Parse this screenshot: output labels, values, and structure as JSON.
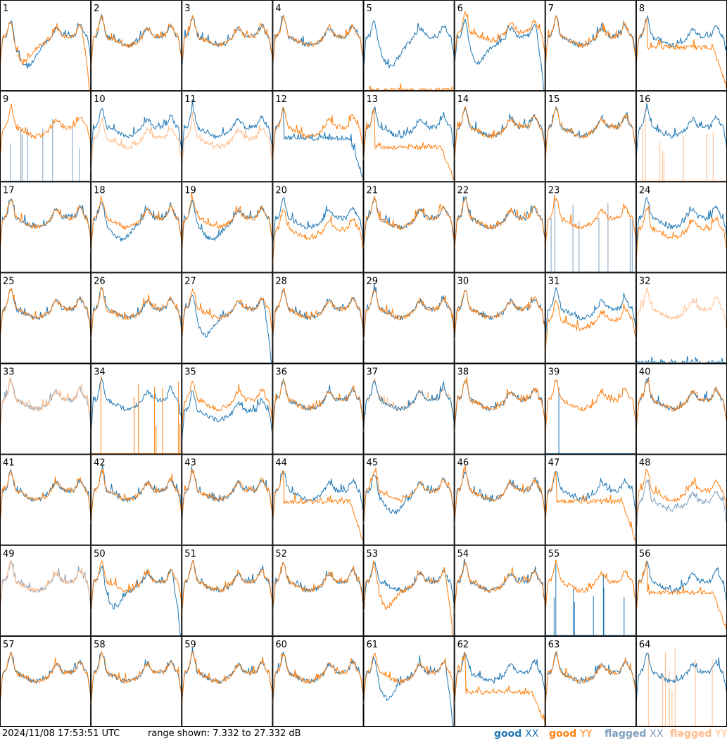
{
  "footer": {
    "timestamp": "2024/11/08 17:53:51 UTC",
    "range_text": "range shown: 7.332 to 27.332 dB"
  },
  "legend": [
    {
      "label_prefix": "good ",
      "label_pol": "XX",
      "color": "#1f77b4"
    },
    {
      "label_prefix": "good ",
      "label_pol": "YY",
      "color": "#ff7f0e"
    },
    {
      "label_prefix": "flagged ",
      "label_pol": "XX",
      "color": "#7f9fbf"
    },
    {
      "label_prefix": "flagged ",
      "label_pol": "YY",
      "color": "#ffbb88"
    }
  ],
  "colors": {
    "good_xx": "#1f77b4",
    "good_yy": "#ff7f0e",
    "flagged_xx": "#7f9fbf",
    "flagged_yy": "#ffbb88"
  },
  "chart_data": {
    "type": "line",
    "unit": "dB",
    "ylim": [
      7.332,
      27.332
    ],
    "grid": false,
    "legend_placement": "bottom-right",
    "panel_layout": "8x8",
    "panels": [
      {
        "id": "1",
        "xx": {
          "status": "good",
          "shape": "dip_mid"
        },
        "yy": {
          "status": "good",
          "shape": "dip_drop"
        }
      },
      {
        "id": "2",
        "xx": {
          "status": "good",
          "shape": "normal"
        },
        "yy": {
          "status": "good",
          "shape": "normal"
        }
      },
      {
        "id": "3",
        "xx": {
          "status": "good",
          "shape": "normal"
        },
        "yy": {
          "status": "good",
          "shape": "normal"
        }
      },
      {
        "id": "4",
        "xx": {
          "status": "good",
          "shape": "normal"
        },
        "yy": {
          "status": "good",
          "shape": "normal"
        }
      },
      {
        "id": "5",
        "xx": {
          "status": "good",
          "shape": "dip_mid"
        },
        "yy": {
          "status": "good",
          "shape": "floor"
        }
      },
      {
        "id": "6",
        "xx": {
          "status": "good",
          "shape": "dip_drop"
        },
        "yy": {
          "status": "good",
          "shape": "high"
        }
      },
      {
        "id": "7",
        "xx": {
          "status": "good",
          "shape": "normal"
        },
        "yy": {
          "status": "good",
          "shape": "normal"
        }
      },
      {
        "id": "8",
        "xx": {
          "status": "good",
          "shape": "normal"
        },
        "yy": {
          "status": "good",
          "shape": "sag_drop"
        }
      },
      {
        "id": "9",
        "xx": {
          "status": "flagged",
          "shape": "spiky_low"
        },
        "yy": {
          "status": "good",
          "shape": "normal"
        }
      },
      {
        "id": "10",
        "xx": {
          "status": "good",
          "shape": "normal"
        },
        "yy": {
          "status": "flagged",
          "shape": "low"
        }
      },
      {
        "id": "11",
        "xx": {
          "status": "good",
          "shape": "normal"
        },
        "yy": {
          "status": "flagged",
          "shape": "low"
        }
      },
      {
        "id": "12",
        "xx": {
          "status": "good",
          "shape": "sag_drop"
        },
        "yy": {
          "status": "good",
          "shape": "normal"
        }
      },
      {
        "id": "13",
        "xx": {
          "status": "good",
          "shape": "normal"
        },
        "yy": {
          "status": "good",
          "shape": "low_drop"
        }
      },
      {
        "id": "14",
        "xx": {
          "status": "good",
          "shape": "normal"
        },
        "yy": {
          "status": "good",
          "shape": "normal"
        }
      },
      {
        "id": "15",
        "xx": {
          "status": "good",
          "shape": "normal"
        },
        "yy": {
          "status": "good",
          "shape": "normal"
        }
      },
      {
        "id": "16",
        "xx": {
          "status": "good",
          "shape": "normal"
        },
        "yy": {
          "status": "flagged",
          "shape": "spiky_low"
        }
      },
      {
        "id": "17",
        "xx": {
          "status": "good",
          "shape": "normal"
        },
        "yy": {
          "status": "good",
          "shape": "normal"
        }
      },
      {
        "id": "18",
        "xx": {
          "status": "good",
          "shape": "dip_shallow"
        },
        "yy": {
          "status": "good",
          "shape": "normal"
        }
      },
      {
        "id": "19",
        "xx": {
          "status": "good",
          "shape": "dip_shallow"
        },
        "yy": {
          "status": "good",
          "shape": "normal"
        }
      },
      {
        "id": "20",
        "xx": {
          "status": "good",
          "shape": "normal"
        },
        "yy": {
          "status": "good",
          "shape": "low"
        }
      },
      {
        "id": "21",
        "xx": {
          "status": "good",
          "shape": "normal"
        },
        "yy": {
          "status": "good",
          "shape": "normal"
        }
      },
      {
        "id": "22",
        "xx": {
          "status": "good",
          "shape": "normal"
        },
        "yy": {
          "status": "good",
          "shape": "normal"
        }
      },
      {
        "id": "23",
        "xx": {
          "status": "flagged",
          "shape": "spiky_low"
        },
        "yy": {
          "status": "good",
          "shape": "normal"
        }
      },
      {
        "id": "24",
        "xx": {
          "status": "good",
          "shape": "normal"
        },
        "yy": {
          "status": "good",
          "shape": "low"
        }
      },
      {
        "id": "25",
        "xx": {
          "status": "good",
          "shape": "normal"
        },
        "yy": {
          "status": "good",
          "shape": "normal"
        }
      },
      {
        "id": "26",
        "xx": {
          "status": "good",
          "shape": "normal"
        },
        "yy": {
          "status": "good",
          "shape": "normal"
        }
      },
      {
        "id": "27",
        "xx": {
          "status": "good",
          "shape": "dip_drop"
        },
        "yy": {
          "status": "good",
          "shape": "normal"
        }
      },
      {
        "id": "28",
        "xx": {
          "status": "good",
          "shape": "normal"
        },
        "yy": {
          "status": "good",
          "shape": "normal"
        }
      },
      {
        "id": "29",
        "xx": {
          "status": "good",
          "shape": "normal"
        },
        "yy": {
          "status": "good",
          "shape": "normal"
        }
      },
      {
        "id": "30",
        "xx": {
          "status": "good",
          "shape": "normal"
        },
        "yy": {
          "status": "good",
          "shape": "normal"
        }
      },
      {
        "id": "31",
        "xx": {
          "status": "good",
          "shape": "normal"
        },
        "yy": {
          "status": "good",
          "shape": "low"
        }
      },
      {
        "id": "32",
        "xx": {
          "status": "good",
          "shape": "floor"
        },
        "yy": {
          "status": "flagged",
          "shape": "normal"
        }
      },
      {
        "id": "33",
        "xx": {
          "status": "flagged",
          "shape": "normal"
        },
        "yy": {
          "status": "flagged",
          "shape": "normal"
        }
      },
      {
        "id": "34",
        "xx": {
          "status": "good",
          "shape": "normal"
        },
        "yy": {
          "status": "good",
          "shape": "spiky_low"
        }
      },
      {
        "id": "35",
        "xx": {
          "status": "good",
          "shape": "low"
        },
        "yy": {
          "status": "good",
          "shape": "normal"
        }
      },
      {
        "id": "36",
        "xx": {
          "status": "good",
          "shape": "normal"
        },
        "yy": {
          "status": "good",
          "shape": "normal"
        }
      },
      {
        "id": "37",
        "xx": {
          "status": "good",
          "shape": "normal"
        },
        "yy": {
          "status": "flagged",
          "shape": "normal"
        }
      },
      {
        "id": "38",
        "xx": {
          "status": "good",
          "shape": "normal"
        },
        "yy": {
          "status": "good",
          "shape": "normal"
        }
      },
      {
        "id": "39",
        "xx": {
          "status": "good",
          "shape": "spike_single"
        },
        "yy": {
          "status": "good",
          "shape": "normal"
        }
      },
      {
        "id": "40",
        "xx": {
          "status": "good",
          "shape": "normal"
        },
        "yy": {
          "status": "good",
          "shape": "normal"
        }
      },
      {
        "id": "41",
        "xx": {
          "status": "good",
          "shape": "normal"
        },
        "yy": {
          "status": "good",
          "shape": "normal"
        }
      },
      {
        "id": "42",
        "xx": {
          "status": "good",
          "shape": "normal"
        },
        "yy": {
          "status": "good",
          "shape": "normal"
        }
      },
      {
        "id": "43",
        "xx": {
          "status": "good",
          "shape": "normal"
        },
        "yy": {
          "status": "good",
          "shape": "normal"
        }
      },
      {
        "id": "44",
        "xx": {
          "status": "good",
          "shape": "normal"
        },
        "yy": {
          "status": "good",
          "shape": "sag_drop"
        }
      },
      {
        "id": "45",
        "xx": {
          "status": "good",
          "shape": "dip_shallow"
        },
        "yy": {
          "status": "good",
          "shape": "normal"
        }
      },
      {
        "id": "46",
        "xx": {
          "status": "good",
          "shape": "normal"
        },
        "yy": {
          "status": "good",
          "shape": "normal"
        }
      },
      {
        "id": "47",
        "xx": {
          "status": "good",
          "shape": "normal"
        },
        "yy": {
          "status": "good",
          "shape": "sag_drop"
        }
      },
      {
        "id": "48",
        "xx": {
          "status": "flagged",
          "shape": "low"
        },
        "yy": {
          "status": "good",
          "shape": "normal"
        }
      },
      {
        "id": "49",
        "xx": {
          "status": "flagged",
          "shape": "normal"
        },
        "yy": {
          "status": "flagged",
          "shape": "normal"
        }
      },
      {
        "id": "50",
        "xx": {
          "status": "good",
          "shape": "dip_drop"
        },
        "yy": {
          "status": "good",
          "shape": "normal"
        }
      },
      {
        "id": "51",
        "xx": {
          "status": "good",
          "shape": "normal"
        },
        "yy": {
          "status": "good",
          "shape": "normal"
        }
      },
      {
        "id": "52",
        "xx": {
          "status": "good",
          "shape": "normal"
        },
        "yy": {
          "status": "good",
          "shape": "normal"
        }
      },
      {
        "id": "53",
        "xx": {
          "status": "good",
          "shape": "normal"
        },
        "yy": {
          "status": "good",
          "shape": "dip_drop"
        }
      },
      {
        "id": "54",
        "xx": {
          "status": "good",
          "shape": "normal"
        },
        "yy": {
          "status": "good",
          "shape": "normal"
        }
      },
      {
        "id": "55",
        "xx": {
          "status": "good",
          "shape": "spiky_low"
        },
        "yy": {
          "status": "good",
          "shape": "normal"
        }
      },
      {
        "id": "56",
        "xx": {
          "status": "good",
          "shape": "normal"
        },
        "yy": {
          "status": "good",
          "shape": "sag_drop"
        }
      },
      {
        "id": "57",
        "xx": {
          "status": "good",
          "shape": "normal"
        },
        "yy": {
          "status": "good",
          "shape": "normal"
        }
      },
      {
        "id": "58",
        "xx": {
          "status": "good",
          "shape": "normal"
        },
        "yy": {
          "status": "good",
          "shape": "normal"
        }
      },
      {
        "id": "59",
        "xx": {
          "status": "good",
          "shape": "normal"
        },
        "yy": {
          "status": "good",
          "shape": "normal"
        }
      },
      {
        "id": "60",
        "xx": {
          "status": "good",
          "shape": "normal"
        },
        "yy": {
          "status": "good",
          "shape": "normal"
        }
      },
      {
        "id": "61",
        "xx": {
          "status": "good",
          "shape": "dip_drop"
        },
        "yy": {
          "status": "good",
          "shape": "normal"
        }
      },
      {
        "id": "62",
        "xx": {
          "status": "good",
          "shape": "normal"
        },
        "yy": {
          "status": "good",
          "shape": "low_drop"
        }
      },
      {
        "id": "63",
        "xx": {
          "status": "good",
          "shape": "normal"
        },
        "yy": {
          "status": "good",
          "shape": "normal"
        }
      },
      {
        "id": "64",
        "xx": {
          "status": "good",
          "shape": "normal"
        },
        "yy": {
          "status": "flagged",
          "shape": "spiky_low"
        }
      }
    ]
  }
}
